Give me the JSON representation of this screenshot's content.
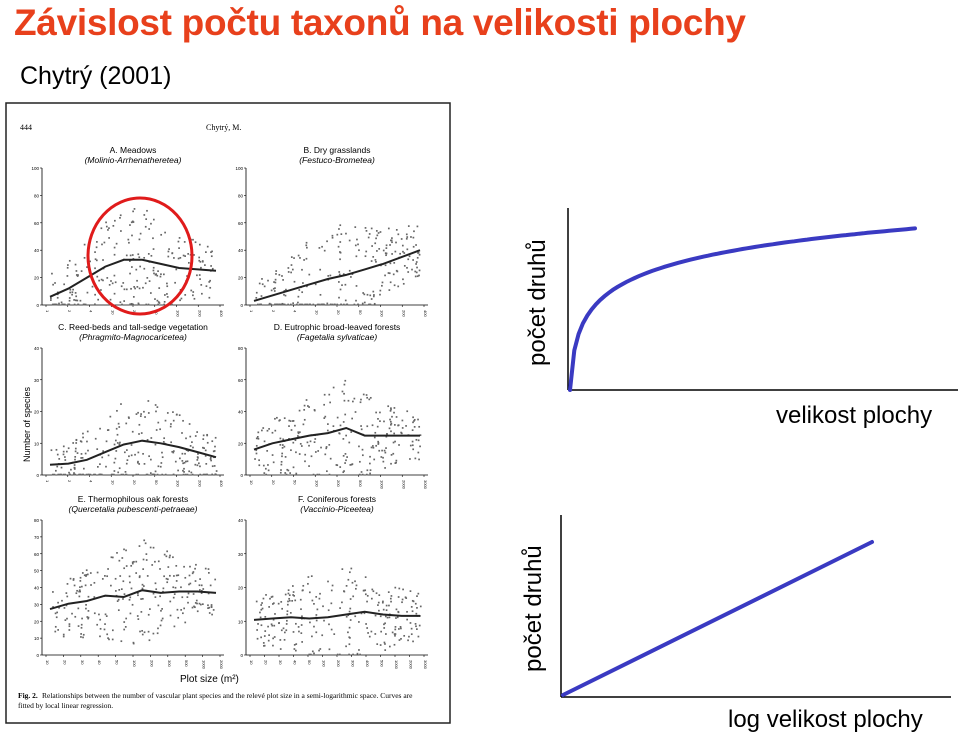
{
  "slide": {
    "title": "Závislost počtu taxonů na velikosti plochy",
    "subtitle": "Chytrý (2001)"
  },
  "scan": {
    "page_number": "444",
    "running_head": "Chytrý, M.",
    "y_axis_label": "Number of species",
    "x_axis_label": "Plot size (m²)",
    "caption_bold": "Fig. 2.",
    "caption_text": "Relationships between the number of vascular plant species and the relevé plot size in a semi-logarithmic space. Curves are",
    "caption_text2": "fitted by local linear regression.",
    "panels": [
      {
        "id": "A",
        "title": "A. Meadows",
        "subtitle": "(Molinio-Arrhenatheretea)",
        "yticks": [
          "0",
          "20",
          "40",
          "60",
          "80",
          "100"
        ],
        "xticks": [
          "1",
          "2",
          "4",
          "10",
          "20",
          "50",
          "100",
          "200",
          "400"
        ],
        "yrange": [
          0,
          100
        ]
      },
      {
        "id": "B",
        "title": "B. Dry grasslands",
        "subtitle": "(Festuco-Brometea)",
        "yticks": [
          "0",
          "20",
          "40",
          "60",
          "80",
          "100"
        ],
        "xticks": [
          "1",
          "2",
          "4",
          "10",
          "20",
          "50",
          "100",
          "200",
          "400"
        ],
        "yrange": [
          0,
          100
        ]
      },
      {
        "id": "C",
        "title": "C. Reed-beds and tall-sedge vegetation",
        "subtitle": "(Phragmito-Magnocaricetea)",
        "yticks": [
          "0",
          "10",
          "20",
          "30",
          "40"
        ],
        "xticks": [
          "1",
          "2",
          "4",
          "10",
          "20",
          "50",
          "100",
          "200",
          "400"
        ],
        "yrange": [
          0,
          40
        ]
      },
      {
        "id": "D",
        "title": "D. Eutrophic broad-leaved forests",
        "subtitle": "(Fagetalia sylvaticae)",
        "yticks": [
          "0",
          "20",
          "40",
          "60",
          "80"
        ],
        "xticks": [
          "10",
          "20",
          "50",
          "100",
          "200",
          "500",
          "1000",
          "2000",
          "3000"
        ],
        "yrange": [
          0,
          80
        ]
      },
      {
        "id": "E",
        "title": "E. Thermophilous oak forests",
        "subtitle": "(Quercetalia pubescenti-petraeae)",
        "yticks": [
          "0",
          "10",
          "20",
          "30",
          "40",
          "50",
          "60",
          "70",
          "80"
        ],
        "xticks": [
          "10",
          "20",
          "30",
          "40",
          "50",
          "100",
          "200",
          "300",
          "500",
          "1000",
          "2000"
        ],
        "yrange": [
          0,
          80
        ]
      },
      {
        "id": "F",
        "title": "F. Coniferous forests",
        "subtitle": "(Vaccinio-Piceetea)",
        "yticks": [
          "0",
          "10",
          "20",
          "30",
          "40"
        ],
        "xticks": [
          "10",
          "20",
          "30",
          "40",
          "50",
          "100",
          "200",
          "300",
          "400",
          "500",
          "1000",
          "2000",
          "3000"
        ],
        "yrange": [
          0,
          40
        ]
      }
    ]
  },
  "chart_data": [
    {
      "type": "line",
      "title": "",
      "xlabel": "velikost plochy",
      "ylabel": "počet druhů",
      "x_scale": "linear",
      "x": [
        0,
        0.02,
        0.05,
        0.1,
        0.2,
        0.3,
        0.4,
        0.5,
        0.6,
        0.7,
        0.8,
        0.9,
        0.95,
        1.0
      ],
      "series": [
        {
          "values": [
            0,
            0.42,
            0.58,
            0.68,
            0.76,
            0.8,
            0.83,
            0.855,
            0.875,
            0.895,
            0.91,
            0.925,
            0.935,
            0.93
          ]
        }
      ],
      "color": "#3a3ac2"
    },
    {
      "type": "line",
      "title": "",
      "xlabel": "log velikost plochy",
      "ylabel": "počet druhů",
      "x_scale": "log",
      "x": [
        0,
        1
      ],
      "series": [
        {
          "values": [
            0,
            1
          ]
        }
      ],
      "color": "#3a3ac2"
    }
  ]
}
